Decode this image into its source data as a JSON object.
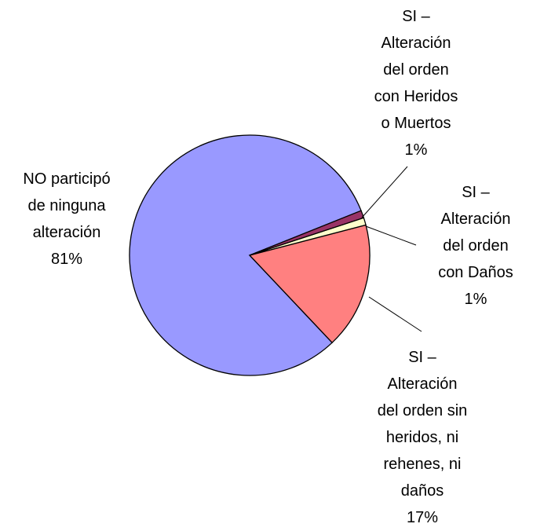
{
  "chart_data": {
    "type": "pie",
    "categories": [
      "SI – Alteración del orden con Heridos o Muertos",
      "SI – Alteración del orden con Daños",
      "SI – Alteración del orden sin heridos, ni rehenes, ni daños",
      "NO participó de ninguna alteración"
    ],
    "values": [
      1,
      1,
      17,
      81
    ],
    "value_labels": [
      "1%",
      "1%",
      "17%",
      "81%"
    ],
    "colors": [
      "#993366",
      "#ffffcc",
      "#ff8080",
      "#9999ff"
    ]
  }
}
